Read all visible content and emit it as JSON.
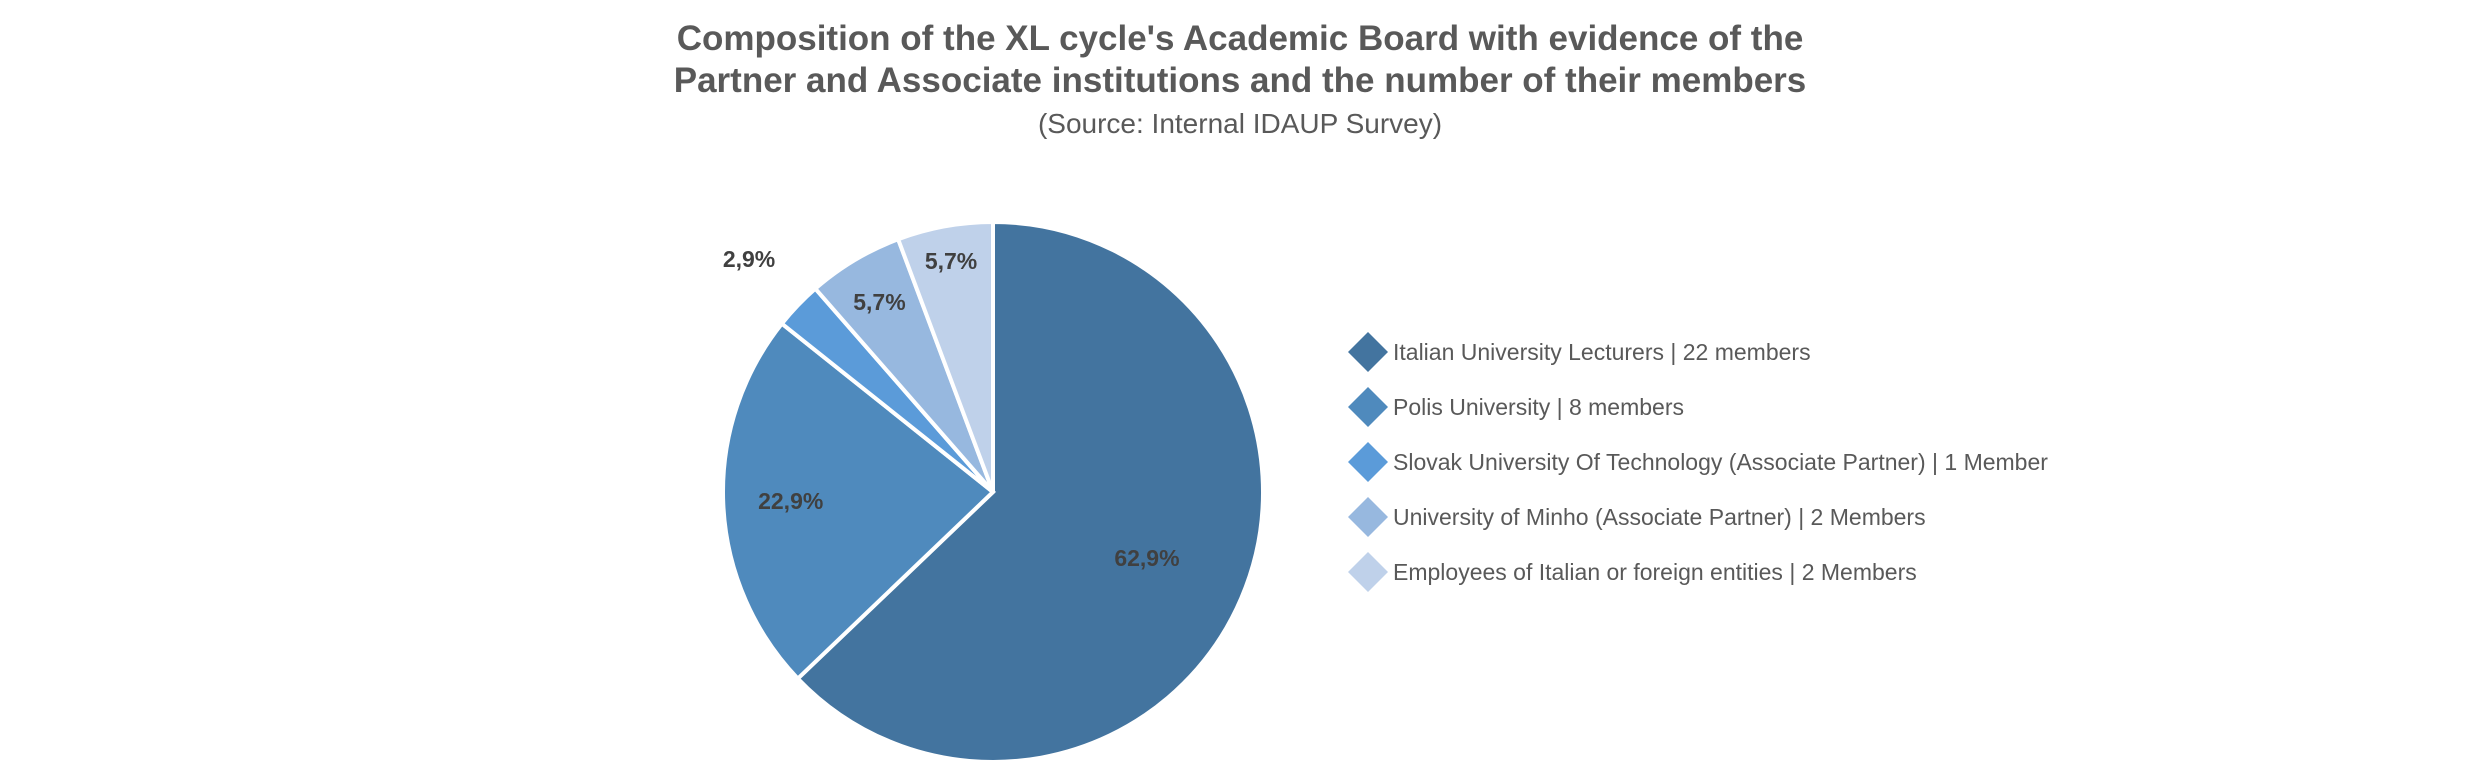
{
  "chart_data": {
    "type": "pie",
    "title": "Composition of the XL cycle's  Academic Board with evidence of the\nPartner and Associate institutions and the number of their members",
    "subtitle": "(Source: Internal IDAUP Survey)",
    "legend_position": "right",
    "slices": [
      {
        "label": "Italian University Lecturers | 22 members",
        "value": 22,
        "percent_label": "62,9%",
        "color": "#43749f"
      },
      {
        "label": "Polis University |  8  members",
        "value": 8,
        "percent_label": "22,9%",
        "color": "#4f8abd"
      },
      {
        "label": "Slovak University Of Technology (Associate Partner) | 1 Member",
        "value": 1,
        "percent_label": "2,9%",
        "color": "#5b9bd9"
      },
      {
        "label": "University of Minho (Associate Partner) | 2 Members",
        "value": 2,
        "percent_label": "5,7%",
        "color": "#97b8df"
      },
      {
        "label": "Employees of Italian or foreign entities | 2 Members",
        "value": 2,
        "percent_label": "5,7%",
        "color": "#bfd1ea"
      }
    ]
  }
}
